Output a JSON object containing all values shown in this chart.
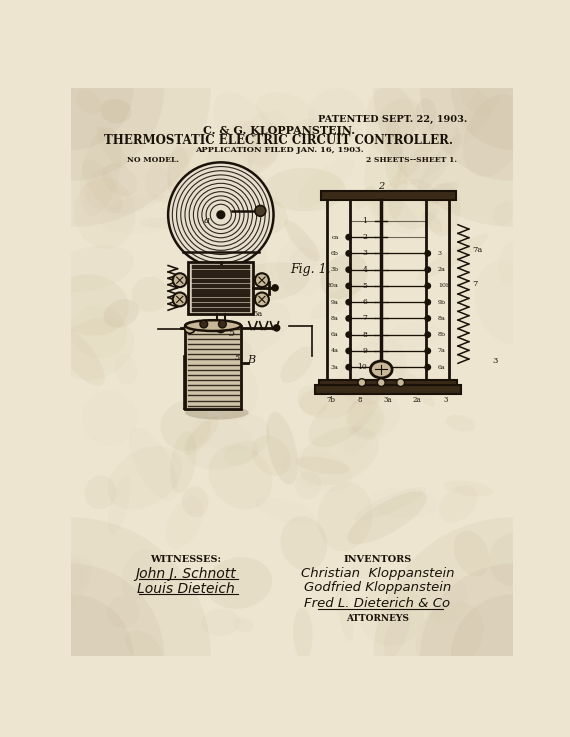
{
  "bg_color": "#ede5d0",
  "paper_color": "#e8dece",
  "title_line1": "PATENTED SEPT. 22, 1903.",
  "title_line2": "C. & G. KLOPPANSTEIN.",
  "title_line3": "THERMOSTATIC ELECTRIC CIRCUIT CONTROLLER.",
  "title_line4": "APPLICATION FILED JAN. 16, 1903.",
  "no_model": "NO MODEL.",
  "sheets": "2 SHEETS--SHEET 1.",
  "fig_label": "Fig. 1.",
  "witnesses_label": "WITNESSES:",
  "witness1": "John J. Schnott",
  "witness2": "Louis Dieteich",
  "inventors_label": "INVENTORS",
  "inventor1": "Christian  Kloppanstein",
  "inventor2": "Godfried Kloppanstein",
  "attorney_sig": "Fred L. Dieterich & Co",
  "attorneys_label": "ATTORNEYS",
  "ink_color": "#1a1209",
  "text_color": "#1a1209"
}
